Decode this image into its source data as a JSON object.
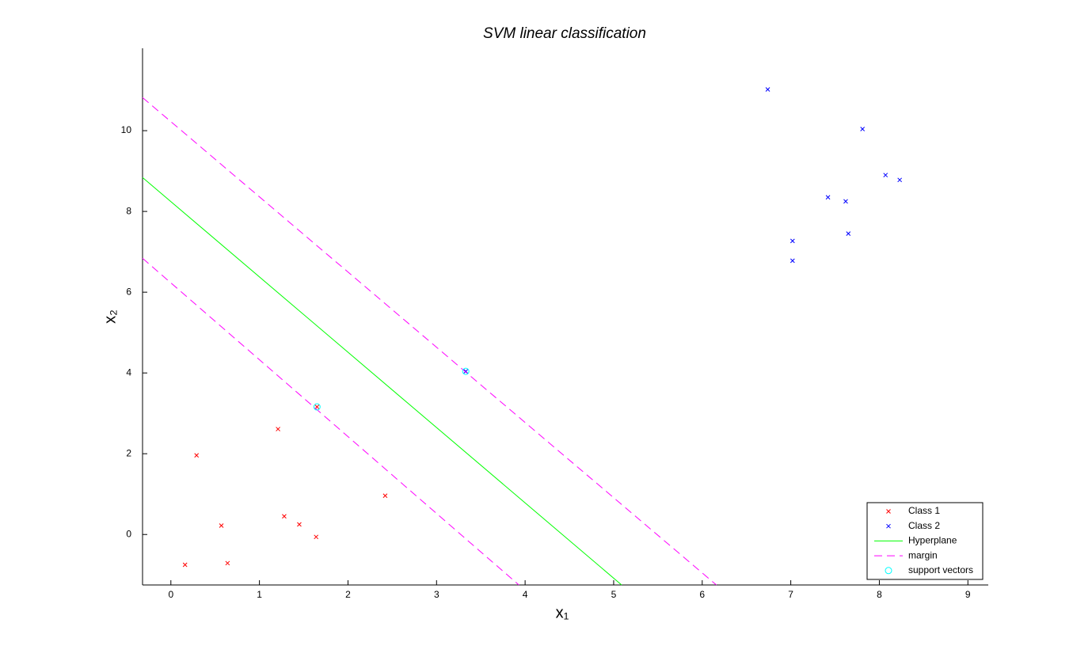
{
  "chart_data": {
    "type": "scatter",
    "title": "SVM linear classification",
    "xlabel": "x₁",
    "ylabel": "x₂",
    "xlim": [
      -0.32,
      9.23
    ],
    "ylim": [
      -1.25,
      12.04
    ],
    "xticks": [
      0,
      1,
      2,
      3,
      4,
      5,
      6,
      7,
      8,
      9
    ],
    "yticks": [
      0,
      2,
      4,
      6,
      8,
      10
    ],
    "legend": "lower right",
    "series": [
      {
        "name": "Class 1",
        "color": "#ff0000",
        "marker": "x",
        "x": [
          0.16,
          0.29,
          0.57,
          0.64,
          1.21,
          1.28,
          1.45,
          1.64,
          1.65,
          2.42
        ],
        "y": [
          -0.75,
          1.96,
          0.22,
          -0.71,
          2.61,
          0.45,
          0.25,
          -0.06,
          3.16,
          0.96
        ]
      },
      {
        "name": "Class 2",
        "color": "#0000ff",
        "marker": "x",
        "x": [
          6.74,
          7.81,
          8.07,
          8.23,
          7.42,
          7.62,
          7.02,
          7.65,
          7.02,
          3.33
        ],
        "y": [
          11.02,
          10.04,
          8.9,
          8.78,
          8.35,
          8.25,
          7.27,
          7.45,
          6.78,
          4.04
        ]
      },
      {
        "name": "Hyperplane",
        "color": "#00ff00",
        "line": "solid",
        "x": [
          -0.32,
          5.09
        ],
        "y": [
          8.84,
          -1.25
        ]
      },
      {
        "name": "margin",
        "color": "#ff00ff",
        "line": "dashed",
        "x": [
          -0.32,
          6.16
        ],
        "y": [
          10.82,
          -1.25
        ]
      },
      {
        "color": "#ff00ff",
        "line": "dashed",
        "x": [
          -0.32,
          3.93
        ],
        "y": [
          6.84,
          -1.25
        ]
      },
      {
        "name": "support vectors",
        "color": "#00ffff",
        "marker": "o",
        "x": [
          1.65,
          3.33
        ],
        "y": [
          3.16,
          4.04
        ]
      }
    ]
  }
}
